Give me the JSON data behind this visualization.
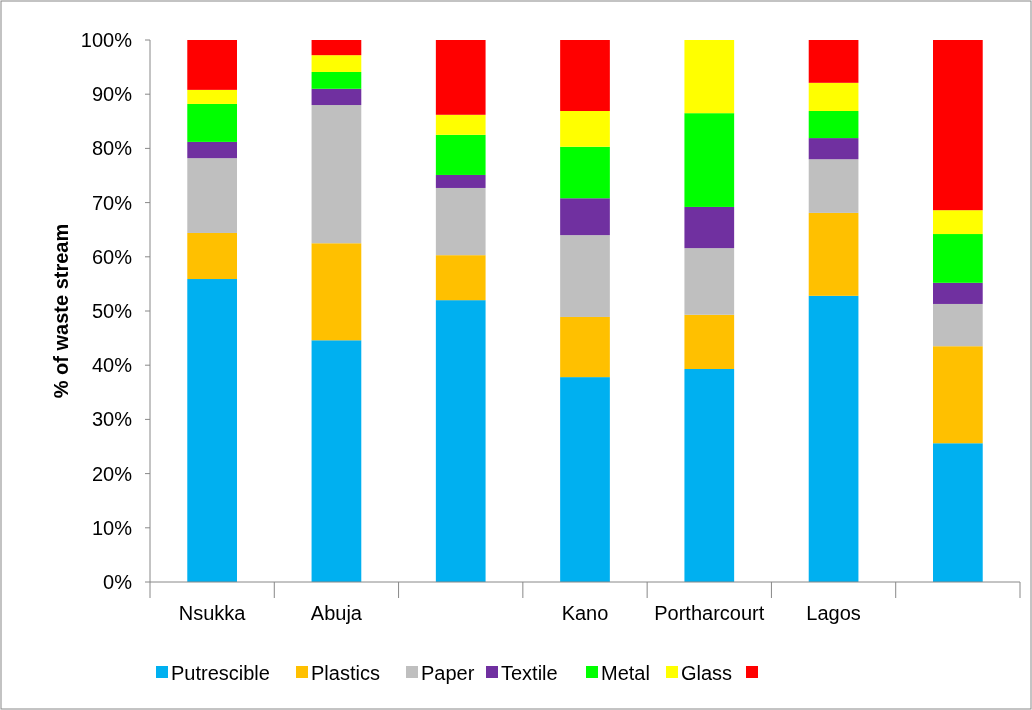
{
  "chart_data": {
    "type": "bar",
    "stacked": true,
    "ylabel": "% of waste stream",
    "categories": [
      "Nsukka",
      "Abuja",
      null,
      "Kano",
      "Portharcourt",
      "Lagos",
      null
    ],
    "series": [
      {
        "name": "Putrescible",
        "color": "#00b0f0",
        "values": [
          55.9,
          44.6,
          52.0,
          37.8,
          39.3,
          52.8,
          25.6
        ]
      },
      {
        "name": "Plastics",
        "color": "#ffc000",
        "values": [
          8.5,
          17.9,
          8.3,
          11.1,
          10.0,
          15.3,
          17.9
        ]
      },
      {
        "name": "Paper",
        "color": "#bfbfbf",
        "values": [
          13.8,
          25.5,
          12.4,
          15.1,
          12.3,
          9.9,
          7.8
        ]
      },
      {
        "name": "Textile",
        "color": "#7030a0",
        "values": [
          3.0,
          3.0,
          2.4,
          6.8,
          7.6,
          3.9,
          3.9
        ]
      },
      {
        "name": "Metal",
        "color": "#00ff00",
        "values": [
          7.0,
          3.1,
          7.4,
          9.5,
          17.3,
          5.0,
          9.0
        ]
      },
      {
        "name": "Glass",
        "color": "#ffff00",
        "values": [
          2.6,
          3.1,
          3.7,
          6.6,
          13.5,
          5.2,
          4.4
        ]
      },
      {
        "color": "#ff0000",
        "values": [
          9.2,
          2.8,
          13.8,
          13.1,
          0,
          7.9,
          31.4
        ]
      }
    ],
    "ylim": [
      0,
      100
    ],
    "yticks": [
      {
        "value": 0,
        "label": "0%"
      },
      {
        "value": 10,
        "label": "10%"
      },
      {
        "value": 20,
        "label": "20%"
      },
      {
        "value": 30,
        "label": "30%"
      },
      {
        "value": 40,
        "label": "40%"
      },
      {
        "value": 50,
        "label": "50%"
      },
      {
        "value": 60,
        "label": "60%"
      },
      {
        "value": 70,
        "label": "70%"
      },
      {
        "value": 80,
        "label": "80%"
      },
      {
        "value": 90,
        "label": "90%"
      },
      {
        "value": 100,
        "label": "100%"
      }
    ],
    "grid": false,
    "legend": "bottom"
  }
}
